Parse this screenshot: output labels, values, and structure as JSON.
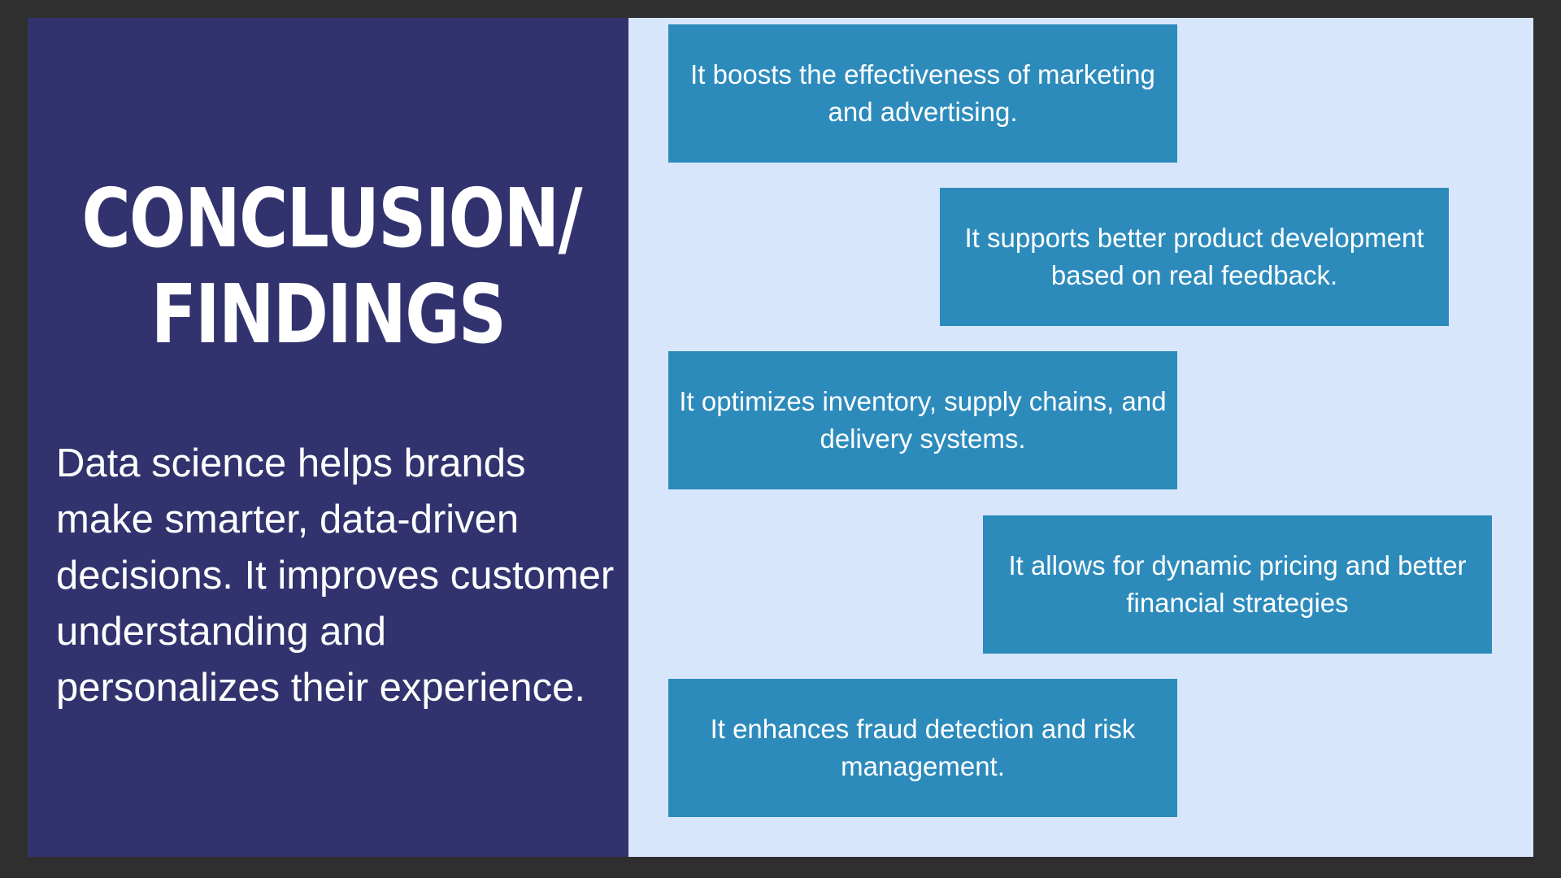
{
  "colors": {
    "frame": "#2f2f2f",
    "left_panel": "#32336e",
    "right_background": "#d8e6fb",
    "finding_box": "#2d8bbc",
    "text": "#ffffff"
  },
  "title": {
    "line1": "CONCLUSION/",
    "line2": "FINDINGS"
  },
  "summary": "Data science helps brands make smarter, data-driven decisions. It improves customer understanding and personalizes their experience.",
  "findings": [
    {
      "text": "It boosts the effectiveness of marketing and advertising."
    },
    {
      "text": "It supports better product development based on real feedback."
    },
    {
      "text": "It optimizes inventory, supply chains, and delivery systems."
    },
    {
      "text": "It allows for dynamic pricing and better financial strategies"
    },
    {
      "text": "It enhances fraud detection and risk management."
    }
  ]
}
